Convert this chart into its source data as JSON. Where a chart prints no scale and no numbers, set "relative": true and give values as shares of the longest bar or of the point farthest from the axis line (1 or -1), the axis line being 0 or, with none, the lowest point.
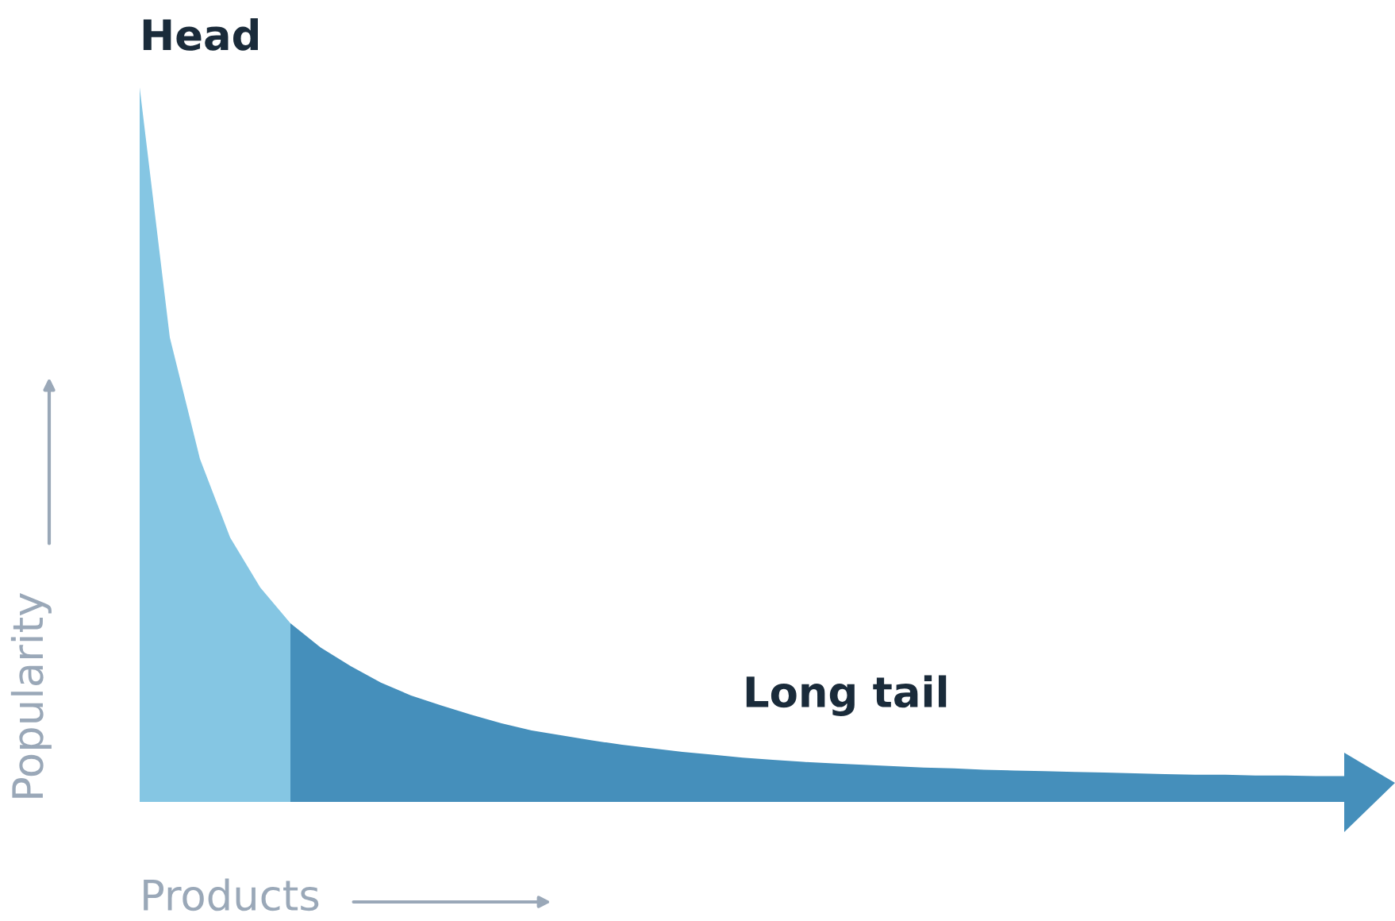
{
  "chart_data": {
    "type": "area",
    "relative": true,
    "xlabel": "Products",
    "ylabel": "Popularity",
    "categories": [
      null,
      null,
      null,
      null,
      null,
      null,
      null,
      null,
      null,
      null,
      null,
      null,
      null,
      null,
      null,
      null,
      null,
      null,
      null,
      null,
      null,
      null,
      null,
      null,
      null,
      null,
      null,
      null,
      null,
      null,
      null,
      null,
      null,
      null,
      null,
      null,
      null,
      null,
      null,
      null,
      null
    ],
    "series": [
      {
        "color": "#85c6e3",
        "values": [
          1.0,
          0.65,
          0.48,
          0.37,
          0.3,
          0.25,
          null,
          null,
          null,
          null,
          null,
          null,
          null,
          null,
          null,
          null,
          null,
          null,
          null,
          null,
          null,
          null,
          null,
          null,
          null,
          null,
          null,
          null,
          null,
          null,
          null,
          null,
          null,
          null,
          null,
          null,
          null,
          null,
          null,
          null,
          null
        ]
      },
      {
        "color": "#458fbb",
        "values": [
          null,
          null,
          null,
          null,
          null,
          0.25,
          0.216,
          0.19,
          0.167,
          0.149,
          0.135,
          0.122,
          0.11,
          0.1,
          0.093,
          0.086,
          0.08,
          0.075,
          0.07,
          0.066,
          0.062,
          0.059,
          0.056,
          0.054,
          0.052,
          0.05,
          0.048,
          0.047,
          0.045,
          0.044,
          0.043,
          0.042,
          0.041,
          0.04,
          0.039,
          0.038,
          0.038,
          0.037,
          0.037,
          0.036,
          0.036
        ]
      }
    ],
    "annotations": [
      "Head",
      "Long tail"
    ],
    "grid": false,
    "legend": false
  }
}
